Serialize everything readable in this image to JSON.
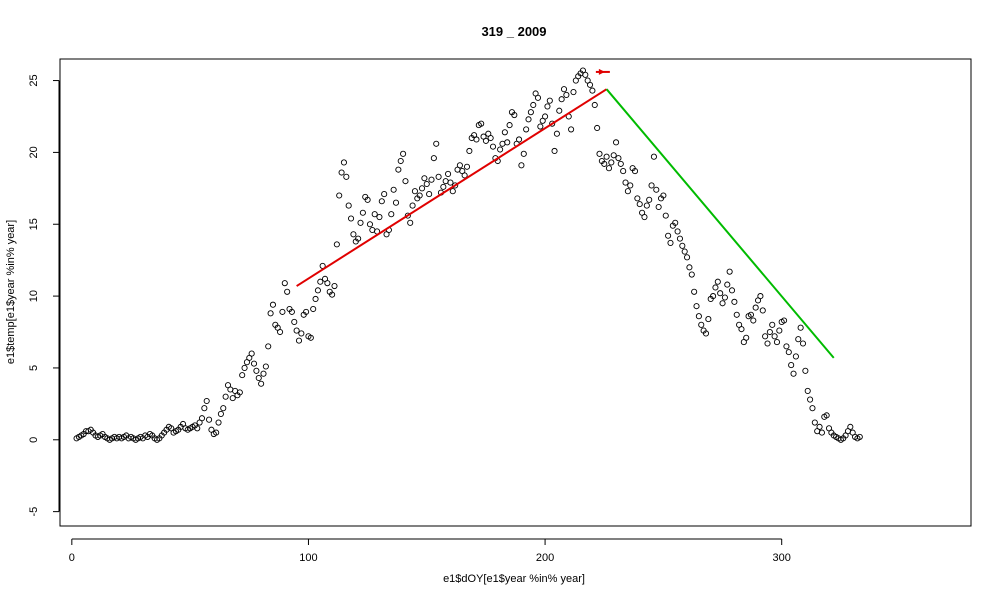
{
  "chart_data": {
    "type": "scatter",
    "title": "319 _ 2009",
    "xlabel": "e1$dOY[e1$year %in% year]",
    "ylabel": "e1$temp[e1$year %in% year]",
    "xlim": [
      -5,
      380
    ],
    "ylim": [
      -6,
      26.5
    ],
    "x_ticks": [
      0,
      100,
      200,
      300
    ],
    "y_ticks": [
      -5,
      0,
      5,
      10,
      15,
      20,
      25
    ],
    "x_tick_labels": [
      "0",
      "100",
      "200",
      "300"
    ],
    "y_tick_labels": [
      "-5",
      "0",
      "5",
      "10",
      "15",
      "20",
      "25"
    ],
    "grid": false,
    "points": [
      [
        2,
        0.1
      ],
      [
        3,
        0.2
      ],
      [
        4,
        0.3
      ],
      [
        5,
        0.4
      ],
      [
        6,
        0.6
      ],
      [
        7,
        0.6
      ],
      [
        8,
        0.7
      ],
      [
        9,
        0.5
      ],
      [
        10,
        0.3
      ],
      [
        11,
        0.2
      ],
      [
        12,
        0.3
      ],
      [
        13,
        0.4
      ],
      [
        14,
        0.2
      ],
      [
        15,
        0.1
      ],
      [
        16,
        0.0
      ],
      [
        17,
        0.1
      ],
      [
        18,
        0.2
      ],
      [
        19,
        0.1
      ],
      [
        20,
        0.2
      ],
      [
        21,
        0.1
      ],
      [
        22,
        0.2
      ],
      [
        23,
        0.3
      ],
      [
        24,
        0.1
      ],
      [
        25,
        0.2
      ],
      [
        26,
        0.1
      ],
      [
        27,
        0.0
      ],
      [
        28,
        0.1
      ],
      [
        29,
        0.2
      ],
      [
        30,
        0.1
      ],
      [
        31,
        0.3
      ],
      [
        32,
        0.2
      ],
      [
        33,
        0.4
      ],
      [
        34,
        0.3
      ],
      [
        35,
        0.1
      ],
      [
        36,
        0.0
      ],
      [
        37,
        0.1
      ],
      [
        38,
        0.3
      ],
      [
        39,
        0.5
      ],
      [
        40,
        0.7
      ],
      [
        41,
        0.9
      ],
      [
        42,
        0.8
      ],
      [
        43,
        0.5
      ],
      [
        44,
        0.6
      ],
      [
        45,
        0.7
      ],
      [
        46,
        0.9
      ],
      [
        47,
        1.1
      ],
      [
        48,
        0.8
      ],
      [
        49,
        0.7
      ],
      [
        50,
        0.8
      ],
      [
        51,
        0.9
      ],
      [
        52,
        1.0
      ],
      [
        53,
        0.8
      ],
      [
        54,
        1.2
      ],
      [
        55,
        1.5
      ],
      [
        56,
        2.2
      ],
      [
        57,
        2.7
      ],
      [
        58,
        1.4
      ],
      [
        59,
        0.7
      ],
      [
        60,
        0.4
      ],
      [
        61,
        0.5
      ],
      [
        62,
        1.2
      ],
      [
        63,
        1.8
      ],
      [
        64,
        2.2
      ],
      [
        65,
        3.0
      ],
      [
        66,
        3.8
      ],
      [
        67,
        3.5
      ],
      [
        68,
        2.9
      ],
      [
        69,
        3.4
      ],
      [
        70,
        3.1
      ],
      [
        71,
        3.3
      ],
      [
        72,
        4.5
      ],
      [
        73,
        5.0
      ],
      [
        74,
        5.4
      ],
      [
        75,
        5.7
      ],
      [
        76,
        6.0
      ],
      [
        77,
        5.3
      ],
      [
        78,
        4.8
      ],
      [
        79,
        4.3
      ],
      [
        80,
        3.9
      ],
      [
        81,
        4.6
      ],
      [
        82,
        5.1
      ],
      [
        83,
        6.5
      ],
      [
        84,
        8.8
      ],
      [
        85,
        9.4
      ],
      [
        86,
        8.0
      ],
      [
        87,
        7.8
      ],
      [
        88,
        7.5
      ],
      [
        89,
        8.9
      ],
      [
        90,
        10.9
      ],
      [
        91,
        10.3
      ],
      [
        92,
        9.1
      ],
      [
        93,
        8.9
      ],
      [
        94,
        8.2
      ],
      [
        95,
        7.6
      ],
      [
        96,
        6.9
      ],
      [
        97,
        7.4
      ],
      [
        98,
        8.7
      ],
      [
        99,
        8.9
      ],
      [
        100,
        7.2
      ],
      [
        101,
        7.1
      ],
      [
        102,
        9.1
      ],
      [
        103,
        9.8
      ],
      [
        104,
        10.4
      ],
      [
        105,
        11.0
      ],
      [
        106,
        12.1
      ],
      [
        107,
        11.2
      ],
      [
        108,
        10.9
      ],
      [
        109,
        10.3
      ],
      [
        110,
        10.1
      ],
      [
        111,
        10.7
      ],
      [
        112,
        13.6
      ],
      [
        113,
        17.0
      ],
      [
        114,
        18.6
      ],
      [
        115,
        19.3
      ],
      [
        116,
        18.3
      ],
      [
        117,
        16.3
      ],
      [
        118,
        15.4
      ],
      [
        119,
        14.3
      ],
      [
        120,
        13.8
      ],
      [
        121,
        14.0
      ],
      [
        122,
        15.1
      ],
      [
        123,
        15.8
      ],
      [
        124,
        16.9
      ],
      [
        125,
        16.7
      ],
      [
        126,
        15.0
      ],
      [
        127,
        14.6
      ],
      [
        128,
        15.7
      ],
      [
        129,
        14.5
      ],
      [
        130,
        15.5
      ],
      [
        131,
        16.6
      ],
      [
        132,
        17.1
      ],
      [
        133,
        14.3
      ],
      [
        134,
        14.6
      ],
      [
        135,
        15.7
      ],
      [
        136,
        17.4
      ],
      [
        137,
        16.5
      ],
      [
        138,
        18.8
      ],
      [
        139,
        19.4
      ],
      [
        140,
        19.9
      ],
      [
        141,
        18.0
      ],
      [
        142,
        15.6
      ],
      [
        143,
        15.1
      ],
      [
        144,
        16.3
      ],
      [
        145,
        17.3
      ],
      [
        146,
        16.8
      ],
      [
        147,
        17.0
      ],
      [
        148,
        17.5
      ],
      [
        149,
        18.2
      ],
      [
        150,
        17.8
      ],
      [
        151,
        17.1
      ],
      [
        152,
        18.1
      ],
      [
        153,
        19.6
      ],
      [
        154,
        20.6
      ],
      [
        155,
        18.3
      ],
      [
        156,
        17.2
      ],
      [
        157,
        17.6
      ],
      [
        158,
        18.0
      ],
      [
        159,
        18.5
      ],
      [
        160,
        17.9
      ],
      [
        161,
        17.3
      ],
      [
        162,
        17.7
      ],
      [
        163,
        18.8
      ],
      [
        164,
        19.1
      ],
      [
        165,
        18.7
      ],
      [
        166,
        18.4
      ],
      [
        167,
        19.0
      ],
      [
        168,
        20.1
      ],
      [
        169,
        21.0
      ],
      [
        170,
        21.2
      ],
      [
        171,
        20.9
      ],
      [
        172,
        21.9
      ],
      [
        173,
        22.0
      ],
      [
        174,
        21.1
      ],
      [
        175,
        20.8
      ],
      [
        176,
        21.3
      ],
      [
        177,
        21.0
      ],
      [
        178,
        20.4
      ],
      [
        179,
        19.6
      ],
      [
        180,
        19.4
      ],
      [
        181,
        20.2
      ],
      [
        182,
        20.6
      ],
      [
        183,
        21.4
      ],
      [
        184,
        20.7
      ],
      [
        185,
        21.9
      ],
      [
        186,
        22.8
      ],
      [
        187,
        22.6
      ],
      [
        188,
        20.6
      ],
      [
        189,
        20.9
      ],
      [
        190,
        19.1
      ],
      [
        191,
        19.9
      ],
      [
        192,
        21.6
      ],
      [
        193,
        22.3
      ],
      [
        194,
        22.8
      ],
      [
        195,
        23.3
      ],
      [
        196,
        24.1
      ],
      [
        197,
        23.8
      ],
      [
        198,
        21.8
      ],
      [
        199,
        22.2
      ],
      [
        200,
        22.5
      ],
      [
        201,
        23.2
      ],
      [
        202,
        23.6
      ],
      [
        203,
        22.0
      ],
      [
        204,
        20.1
      ],
      [
        205,
        21.3
      ],
      [
        206,
        22.9
      ],
      [
        207,
        23.7
      ],
      [
        208,
        24.4
      ],
      [
        209,
        24.0
      ],
      [
        210,
        22.5
      ],
      [
        211,
        21.6
      ],
      [
        212,
        24.2
      ],
      [
        213,
        25.0
      ],
      [
        214,
        25.3
      ],
      [
        215,
        25.5
      ],
      [
        216,
        25.7
      ],
      [
        217,
        25.4
      ],
      [
        218,
        25.0
      ],
      [
        219,
        24.7
      ],
      [
        220,
        24.3
      ],
      [
        221,
        23.3
      ],
      [
        222,
        21.7
      ],
      [
        223,
        19.9
      ],
      [
        224,
        19.4
      ],
      [
        225,
        19.2
      ],
      [
        226,
        19.7
      ],
      [
        227,
        18.9
      ],
      [
        228,
        19.3
      ],
      [
        229,
        19.8
      ],
      [
        230,
        20.7
      ],
      [
        231,
        19.6
      ],
      [
        232,
        19.2
      ],
      [
        233,
        18.7
      ],
      [
        234,
        17.9
      ],
      [
        235,
        17.3
      ],
      [
        236,
        17.7
      ],
      [
        237,
        18.9
      ],
      [
        238,
        18.7
      ],
      [
        239,
        16.8
      ],
      [
        240,
        16.4
      ],
      [
        241,
        15.8
      ],
      [
        242,
        15.5
      ],
      [
        243,
        16.3
      ],
      [
        244,
        16.7
      ],
      [
        245,
        17.7
      ],
      [
        246,
        19.7
      ],
      [
        247,
        17.4
      ],
      [
        248,
        16.2
      ],
      [
        249,
        16.8
      ],
      [
        250,
        17.0
      ],
      [
        251,
        15.6
      ],
      [
        252,
        14.2
      ],
      [
        253,
        13.7
      ],
      [
        254,
        14.9
      ],
      [
        255,
        15.1
      ],
      [
        256,
        14.5
      ],
      [
        257,
        14.0
      ],
      [
        258,
        13.5
      ],
      [
        259,
        13.1
      ],
      [
        260,
        12.7
      ],
      [
        261,
        12.0
      ],
      [
        262,
        11.5
      ],
      [
        263,
        10.3
      ],
      [
        264,
        9.3
      ],
      [
        265,
        8.6
      ],
      [
        266,
        8.0
      ],
      [
        267,
        7.6
      ],
      [
        268,
        7.4
      ],
      [
        269,
        8.4
      ],
      [
        270,
        9.8
      ],
      [
        271,
        10.0
      ],
      [
        272,
        10.6
      ],
      [
        273,
        11.0
      ],
      [
        274,
        10.2
      ],
      [
        275,
        9.5
      ],
      [
        276,
        9.9
      ],
      [
        277,
        10.8
      ],
      [
        278,
        11.7
      ],
      [
        279,
        10.4
      ],
      [
        280,
        9.6
      ],
      [
        281,
        8.7
      ],
      [
        282,
        8.0
      ],
      [
        283,
        7.7
      ],
      [
        284,
        6.8
      ],
      [
        285,
        7.1
      ],
      [
        286,
        8.6
      ],
      [
        287,
        8.7
      ],
      [
        288,
        8.3
      ],
      [
        289,
        9.2
      ],
      [
        290,
        9.7
      ],
      [
        291,
        10.0
      ],
      [
        292,
        9.0
      ],
      [
        293,
        7.2
      ],
      [
        294,
        6.7
      ],
      [
        295,
        7.5
      ],
      [
        296,
        8.0
      ],
      [
        297,
        7.2
      ],
      [
        298,
        6.8
      ],
      [
        299,
        7.6
      ],
      [
        300,
        8.2
      ],
      [
        301,
        8.3
      ],
      [
        302,
        6.5
      ],
      [
        303,
        6.1
      ],
      [
        304,
        5.2
      ],
      [
        305,
        4.6
      ],
      [
        306,
        5.8
      ],
      [
        307,
        7.0
      ],
      [
        308,
        7.8
      ],
      [
        309,
        6.7
      ],
      [
        310,
        4.8
      ],
      [
        311,
        3.4
      ],
      [
        312,
        2.8
      ],
      [
        313,
        2.2
      ],
      [
        314,
        1.2
      ],
      [
        315,
        0.6
      ],
      [
        316,
        0.9
      ],
      [
        317,
        0.5
      ],
      [
        318,
        1.6
      ],
      [
        319,
        1.7
      ],
      [
        320,
        0.8
      ],
      [
        321,
        0.5
      ],
      [
        322,
        0.3
      ],
      [
        323,
        0.2
      ],
      [
        324,
        0.1
      ],
      [
        325,
        0.0
      ],
      [
        326,
        0.1
      ],
      [
        327,
        0.3
      ],
      [
        328,
        0.6
      ],
      [
        329,
        0.9
      ],
      [
        330,
        0.5
      ],
      [
        331,
        0.2
      ],
      [
        332,
        0.1
      ],
      [
        333,
        0.2
      ]
    ],
    "segments": [
      {
        "color": "#e00000",
        "x": [
          95,
          226
        ],
        "y": [
          10.7,
          24.4
        ]
      },
      {
        "color": "#00bb00",
        "x": [
          226,
          322
        ],
        "y": [
          24.4,
          5.7
        ]
      }
    ],
    "marker": {
      "color": "#e00000",
      "x": 224,
      "y": 25.6
    }
  }
}
